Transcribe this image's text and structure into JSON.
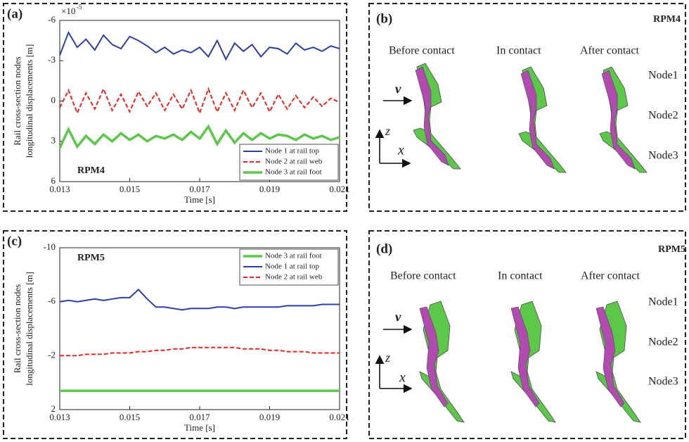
{
  "chart_data": [
    {
      "type": "line",
      "panel_label": "(a)",
      "annotation": "RPM4",
      "y_label": [
        "Rail cross-section nodes",
        "longitudinal displacements [m]"
      ],
      "y_multiplier": {
        "base": "×10",
        "exponent": "-5"
      },
      "x_label": "Time [s]",
      "x": [
        0.013,
        0.01325,
        0.0135,
        0.01375,
        0.014,
        0.01425,
        0.0145,
        0.01475,
        0.015,
        0.01525,
        0.0155,
        0.01575,
        0.016,
        0.01625,
        0.0165,
        0.01675,
        0.017,
        0.01725,
        0.0175,
        0.01775,
        0.018,
        0.01825,
        0.0185,
        0.01875,
        0.019,
        0.01925,
        0.0195,
        0.01975,
        0.02,
        0.02025,
        0.0205,
        0.02075,
        0.021
      ],
      "xlim": [
        0.013,
        0.021
      ],
      "xticks": [
        0.013,
        0.015,
        0.017,
        0.019,
        0.021
      ],
      "ylim": [
        6,
        -6
      ],
      "yticks": [
        -6,
        -3,
        0,
        3,
        6
      ],
      "legend": "lower right",
      "series": [
        {
          "name": "Node 1 at rail top",
          "color": "#2a3fa8",
          "linestyle": "solid",
          "linewidth": 2,
          "values": [
            -3.4,
            -5.1,
            -4.0,
            -4.6,
            -3.8,
            -4.9,
            -4.2,
            -3.9,
            -4.8,
            -4.5,
            -4.1,
            -3.6,
            -4.0,
            -3.5,
            -3.8,
            -3.6,
            -4.0,
            -3.3,
            -4.5,
            -3.1,
            -4.3,
            -3.7,
            -4.2,
            -3.3,
            -4.0,
            -3.9,
            -3.5,
            -4.3,
            -3.8,
            -4.0,
            -3.7,
            -4.1,
            -3.9
          ]
        },
        {
          "name": "Node 2 at rail web",
          "color": "#e8241f",
          "linestyle": "dashed",
          "linewidth": 2,
          "values": [
            0.5,
            -0.8,
            0.9,
            -0.6,
            0.6,
            -0.9,
            0.7,
            -0.5,
            0.8,
            -0.7,
            0.4,
            -0.6,
            0.7,
            -0.5,
            0.6,
            -0.8,
            0.9,
            -0.9,
            0.8,
            -0.6,
            0.7,
            -0.8,
            0.5,
            -0.6,
            0.8,
            -0.5,
            0.6,
            -0.4,
            0.5,
            -0.3,
            0.4,
            -0.2,
            0.1
          ]
        },
        {
          "name": "Node 3 at rail foot",
          "color": "#5cc84a",
          "linestyle": "solid",
          "linewidth": 3.5,
          "values": [
            3.5,
            2.1,
            3.4,
            2.6,
            3.2,
            2.5,
            3.0,
            2.4,
            2.9,
            2.5,
            3.0,
            2.6,
            2.8,
            2.5,
            2.9,
            2.3,
            2.8,
            1.9,
            3.2,
            2.2,
            3.1,
            2.4,
            2.9,
            2.4,
            2.8,
            2.5,
            2.6,
            2.9,
            2.5,
            2.8,
            2.6,
            2.9,
            2.7
          ]
        }
      ]
    },
    {
      "type": "line",
      "panel_label": "(c)",
      "annotation": "RPM5",
      "y_label": [
        "Rail cross-section nodes",
        "longitudinal displacements [m]"
      ],
      "x_label": "Time [s]",
      "x": [
        0.013,
        0.01325,
        0.0135,
        0.01375,
        0.014,
        0.01425,
        0.0145,
        0.01475,
        0.015,
        0.01525,
        0.0155,
        0.01575,
        0.016,
        0.01625,
        0.0165,
        0.01675,
        0.017,
        0.01725,
        0.0175,
        0.01775,
        0.018,
        0.01825,
        0.0185,
        0.01875,
        0.019,
        0.01925,
        0.0195,
        0.01975,
        0.02,
        0.02025,
        0.0205,
        0.02075,
        0.021
      ],
      "xlim": [
        0.013,
        0.021
      ],
      "xticks": [
        0.013,
        0.015,
        0.017,
        0.019,
        0.021
      ],
      "ylim": [
        2,
        -10
      ],
      "yticks": [
        -10,
        -6,
        -2,
        2
      ],
      "legend": "upper right",
      "series": [
        {
          "name": "Node 3 at rail foot",
          "color": "#5cc84a",
          "linestyle": "solid",
          "linewidth": 3.5,
          "values": [
            0.6,
            0.6,
            0.6,
            0.6,
            0.6,
            0.6,
            0.6,
            0.6,
            0.6,
            0.6,
            0.6,
            0.6,
            0.6,
            0.6,
            0.6,
            0.6,
            0.6,
            0.6,
            0.6,
            0.6,
            0.6,
            0.6,
            0.6,
            0.6,
            0.6,
            0.6,
            0.6,
            0.6,
            0.6,
            0.6,
            0.6,
            0.6,
            0.6
          ]
        },
        {
          "name": "Node 1 at rail top",
          "color": "#2a3fa8",
          "linestyle": "solid",
          "linewidth": 2,
          "values": [
            -6.0,
            -6.1,
            -6.0,
            -6.1,
            -6.2,
            -6.1,
            -6.2,
            -6.3,
            -6.3,
            -6.9,
            -6.2,
            -5.6,
            -5.6,
            -5.5,
            -5.4,
            -5.5,
            -5.5,
            -5.5,
            -5.6,
            -5.6,
            -5.5,
            -5.6,
            -5.6,
            -5.6,
            -5.6,
            -5.6,
            -5.7,
            -5.7,
            -5.7,
            -5.7,
            -5.8,
            -5.8,
            -5.8
          ]
        },
        {
          "name": "Node 2 at rail web",
          "color": "#e8241f",
          "linestyle": "dashed",
          "linewidth": 2,
          "values": [
            -2.0,
            -2.0,
            -2.0,
            -2.1,
            -2.1,
            -2.1,
            -2.2,
            -2.2,
            -2.2,
            -2.3,
            -2.3,
            -2.4,
            -2.4,
            -2.5,
            -2.5,
            -2.6,
            -2.6,
            -2.6,
            -2.6,
            -2.6,
            -2.6,
            -2.5,
            -2.5,
            -2.5,
            -2.4,
            -2.4,
            -2.3,
            -2.3,
            -2.3,
            -2.2,
            -2.2,
            -2.2,
            -2.2
          ]
        }
      ]
    }
  ],
  "diagrams": [
    {
      "panel_label": "(b)",
      "title": "RPM4",
      "columns": [
        "Before contact",
        "In contact",
        "After contact"
      ],
      "nodes": [
        "Node1",
        "Node2",
        "Node3"
      ],
      "velocity": "v",
      "axes": [
        "z",
        "x"
      ]
    },
    {
      "panel_label": "(d)",
      "title": "RPM5",
      "columns": [
        "Before contact",
        "In contact",
        "After contact"
      ],
      "nodes": [
        "Node1",
        "Node2",
        "Node3"
      ],
      "velocity": "v",
      "axes": [
        "z",
        "x"
      ]
    }
  ]
}
